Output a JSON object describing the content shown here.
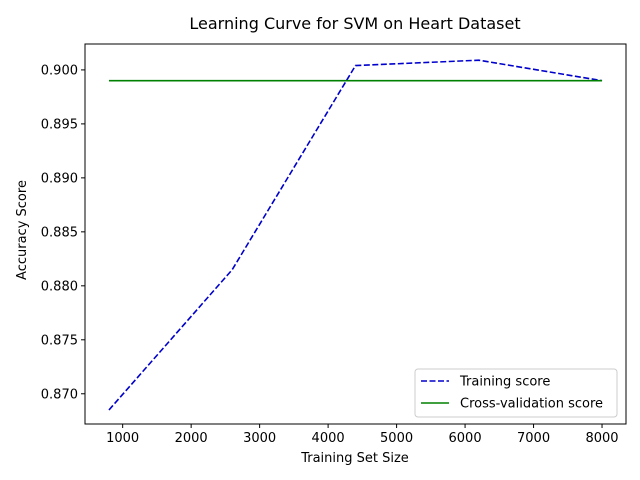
{
  "chart_data": {
    "type": "line",
    "title": "Learning Curve for SVM on Heart Dataset",
    "xlabel": "Training Set Size",
    "ylabel": "Accuracy Score",
    "xlim": [
      450,
      8350
    ],
    "ylim": [
      0.8672,
      0.9024
    ],
    "xticks": [
      1000,
      2000,
      3000,
      4000,
      5000,
      6000,
      7000,
      8000
    ],
    "yticks": [
      0.87,
      0.875,
      0.88,
      0.885,
      0.89,
      0.895,
      0.9
    ],
    "xtick_labels": [
      "1000",
      "2000",
      "3000",
      "4000",
      "5000",
      "6000",
      "7000",
      "8000"
    ],
    "ytick_labels": [
      "0.870",
      "0.875",
      "0.880",
      "0.885",
      "0.890",
      "0.895",
      "0.900"
    ],
    "grid": false,
    "legend_position": "lower-right",
    "series": [
      {
        "name": "Training score",
        "color": "#0000cc",
        "linestyle": "dashed",
        "x": [
          800,
          2600,
          4400,
          6200,
          8000
        ],
        "y": [
          0.8685,
          0.8815,
          0.9004,
          0.9009,
          0.899
        ]
      },
      {
        "name": "Cross-validation score",
        "color": "#008000",
        "linestyle": "solid",
        "x": [
          800,
          2600,
          4400,
          6200,
          8000
        ],
        "y": [
          0.899,
          0.899,
          0.899,
          0.899,
          0.899
        ]
      }
    ]
  }
}
